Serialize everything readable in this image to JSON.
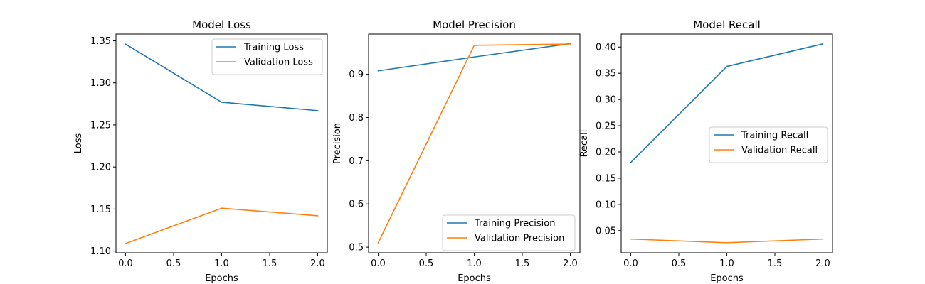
{
  "chart_data": [
    {
      "type": "line",
      "title": "Model Loss",
      "xlabel": "Epochs",
      "ylabel": "Loss",
      "x": [
        0,
        1,
        2
      ],
      "xlim": [
        -0.1,
        2.1
      ],
      "ylim": [
        1.098,
        1.358
      ],
      "xticks": [
        0.0,
        0.5,
        1.0,
        1.5,
        2.0
      ],
      "xtick_labels": [
        "0.0",
        "0.5",
        "1.0",
        "1.5",
        "2.0"
      ],
      "yticks": [
        1.1,
        1.15,
        1.2,
        1.25,
        1.3,
        1.35
      ],
      "ytick_labels": [
        "1.10",
        "1.15",
        "1.20",
        "1.25",
        "1.30",
        "1.35"
      ],
      "legend_position": "top-right",
      "grid": false,
      "series": [
        {
          "name": "Training Loss",
          "color": "#1f77b4",
          "values": [
            1.346,
            1.277,
            1.267
          ]
        },
        {
          "name": "Validation Loss",
          "color": "#ff7f0e",
          "values": [
            1.109,
            1.151,
            1.142
          ]
        }
      ]
    },
    {
      "type": "line",
      "title": "Model Precision",
      "xlabel": "Epochs",
      "ylabel": "Precision",
      "x": [
        0,
        1,
        2
      ],
      "xlim": [
        -0.1,
        2.1
      ],
      "ylim": [
        0.487,
        0.993
      ],
      "xticks": [
        0.0,
        0.5,
        1.0,
        1.5,
        2.0
      ],
      "xtick_labels": [
        "0.0",
        "0.5",
        "1.0",
        "1.5",
        "2.0"
      ],
      "yticks": [
        0.5,
        0.6,
        0.7,
        0.8,
        0.9
      ],
      "ytick_labels": [
        "0.5",
        "0.6",
        "0.7",
        "0.8",
        "0.9"
      ],
      "legend_position": "lower-right",
      "grid": false,
      "series": [
        {
          "name": "Training Precision",
          "color": "#1f77b4",
          "values": [
            0.908,
            0.94,
            0.971
          ]
        },
        {
          "name": "Validation Precision",
          "color": "#ff7f0e",
          "values": [
            0.51,
            0.967,
            0.97
          ]
        }
      ]
    },
    {
      "type": "line",
      "title": "Model Recall",
      "xlabel": "Epochs",
      "ylabel": "Recall",
      "x": [
        0,
        1,
        2
      ],
      "xlim": [
        -0.1,
        2.1
      ],
      "ylim": [
        0.0078,
        0.4247
      ],
      "xticks": [
        0.0,
        0.5,
        1.0,
        1.5,
        2.0
      ],
      "xtick_labels": [
        "0.0",
        "0.5",
        "1.0",
        "1.5",
        "2.0"
      ],
      "yticks": [
        0.05,
        0.1,
        0.15,
        0.2,
        0.25,
        0.3,
        0.35,
        0.4
      ],
      "ytick_labels": [
        "0.05",
        "0.10",
        "0.15",
        "0.20",
        "0.25",
        "0.30",
        "0.35",
        "0.40"
      ],
      "legend_position": "center-right",
      "grid": false,
      "series": [
        {
          "name": "Training Recall",
          "color": "#1f77b4",
          "values": [
            0.18,
            0.363,
            0.406
          ]
        },
        {
          "name": "Validation Recall",
          "color": "#ff7f0e",
          "values": [
            0.034,
            0.027,
            0.034
          ]
        }
      ]
    }
  ]
}
